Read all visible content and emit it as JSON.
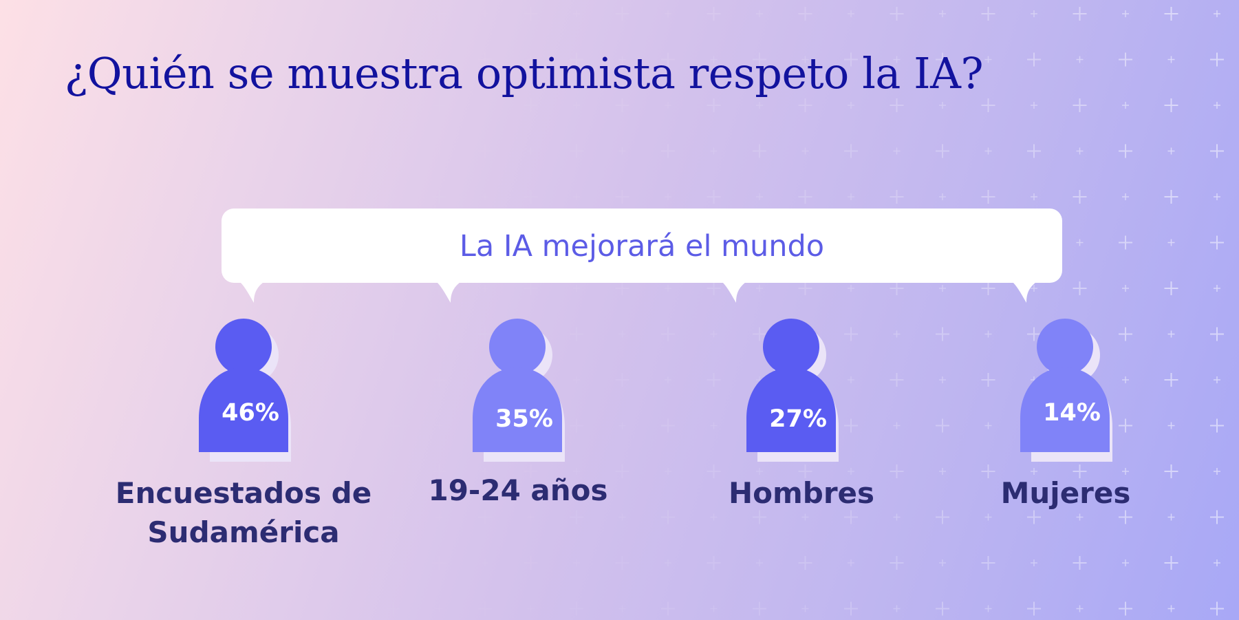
{
  "title": "¿Quién se muestra optimista respeto la IA?",
  "bubble": {
    "text": "La IA mejorará el mundo"
  },
  "colors": {
    "title": "#12129e",
    "figure_dark": "#5a5cf2",
    "figure_light": "#8083f8",
    "shadow": "#ebe4f8",
    "label": "#2c2c72",
    "bubble_text": "#5c5ce6"
  },
  "groups": [
    {
      "label_lines": [
        "Encuestados de",
        "Sudamérica"
      ],
      "value": "46%",
      "shade": "dark"
    },
    {
      "label_lines": [
        "19-24 años"
      ],
      "value": "35%",
      "shade": "light"
    },
    {
      "label_lines": [
        "Hombres"
      ],
      "value": "27%",
      "shade": "dark"
    },
    {
      "label_lines": [
        "Mujeres"
      ],
      "value": "14%",
      "shade": "light"
    }
  ]
}
